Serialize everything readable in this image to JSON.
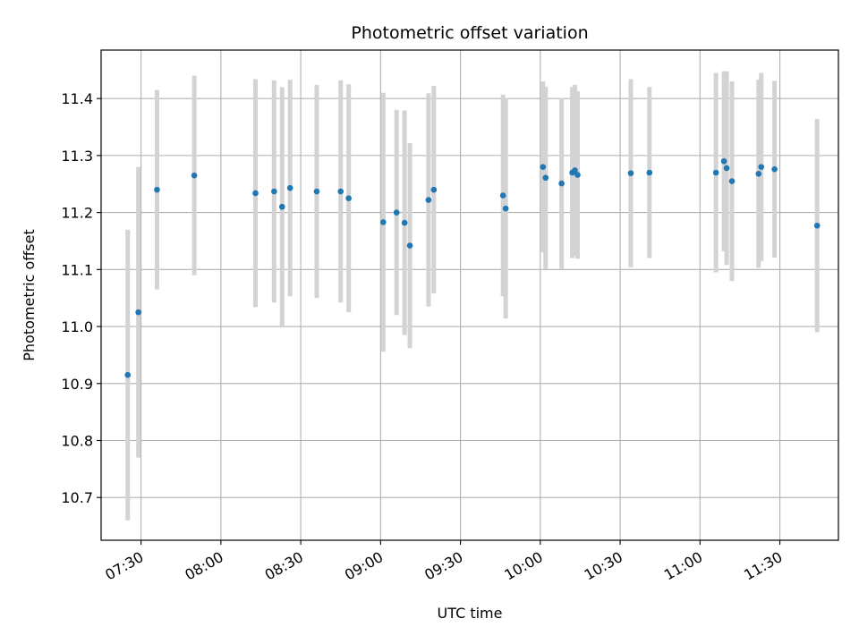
{
  "chart_data": {
    "type": "scatter",
    "title": "Photometric offset variation",
    "xlabel": "UTC time",
    "ylabel": "Photometric offset",
    "grid": true,
    "xlim": [
      "07:15",
      "11:52"
    ],
    "ylim": [
      10.625,
      11.485
    ],
    "x_ticks": [
      "07:30",
      "08:00",
      "08:30",
      "09:00",
      "09:30",
      "10:00",
      "10:30",
      "11:00",
      "11:30"
    ],
    "y_ticks": [
      10.7,
      10.8,
      10.9,
      11.0,
      11.1,
      11.2,
      11.3,
      11.4
    ],
    "colors": {
      "point": "#1f77b4",
      "errorbar": "#d3d3d3",
      "grid": "#b0b0b0"
    },
    "points": [
      {
        "x": "07:25",
        "y": 10.915,
        "yerr": 0.255
      },
      {
        "x": "07:29",
        "y": 11.025,
        "yerr": 0.255
      },
      {
        "x": "07:36",
        "y": 11.24,
        "yerr": 0.175
      },
      {
        "x": "07:50",
        "y": 11.265,
        "yerr": 0.175
      },
      {
        "x": "08:13",
        "y": 11.234,
        "yerr": 0.2
      },
      {
        "x": "08:20",
        "y": 11.237,
        "yerr": 0.195
      },
      {
        "x": "08:23",
        "y": 11.21,
        "yerr": 0.21
      },
      {
        "x": "08:26",
        "y": 11.243,
        "yerr": 0.19
      },
      {
        "x": "08:36",
        "y": 11.237,
        "yerr": 0.187
      },
      {
        "x": "08:45",
        "y": 11.237,
        "yerr": 0.195
      },
      {
        "x": "08:48",
        "y": 11.225,
        "yerr": 0.2
      },
      {
        "x": "09:01",
        "y": 11.183,
        "yerr": 0.227
      },
      {
        "x": "09:06",
        "y": 11.2,
        "yerr": 0.18
      },
      {
        "x": "09:09",
        "y": 11.182,
        "yerr": 0.197
      },
      {
        "x": "09:11",
        "y": 11.142,
        "yerr": 0.18
      },
      {
        "x": "09:18",
        "y": 11.222,
        "yerr": 0.187
      },
      {
        "x": "09:20",
        "y": 11.24,
        "yerr": 0.182
      },
      {
        "x": "09:46",
        "y": 11.23,
        "yerr": 0.177
      },
      {
        "x": "09:47",
        "y": 11.207,
        "yerr": 0.193
      },
      {
        "x": "10:01",
        "y": 11.28,
        "yerr": 0.15
      },
      {
        "x": "10:02",
        "y": 11.261,
        "yerr": 0.16
      },
      {
        "x": "10:08",
        "y": 11.251,
        "yerr": 0.15
      },
      {
        "x": "10:12",
        "y": 11.27,
        "yerr": 0.15
      },
      {
        "x": "10:13",
        "y": 11.274,
        "yerr": 0.15
      },
      {
        "x": "10:14",
        "y": 11.266,
        "yerr": 0.147
      },
      {
        "x": "10:34",
        "y": 11.269,
        "yerr": 0.165
      },
      {
        "x": "10:41",
        "y": 11.27,
        "yerr": 0.15
      },
      {
        "x": "11:06",
        "y": 11.27,
        "yerr": 0.175
      },
      {
        "x": "11:09",
        "y": 11.29,
        "yerr": 0.158
      },
      {
        "x": "11:10",
        "y": 11.278,
        "yerr": 0.17
      },
      {
        "x": "11:12",
        "y": 11.255,
        "yerr": 0.175
      },
      {
        "x": "11:22",
        "y": 11.268,
        "yerr": 0.165
      },
      {
        "x": "11:23",
        "y": 11.28,
        "yerr": 0.165
      },
      {
        "x": "11:28",
        "y": 11.276,
        "yerr": 0.155
      },
      {
        "x": "11:44",
        "y": 11.177,
        "yerr": 0.187
      }
    ]
  }
}
